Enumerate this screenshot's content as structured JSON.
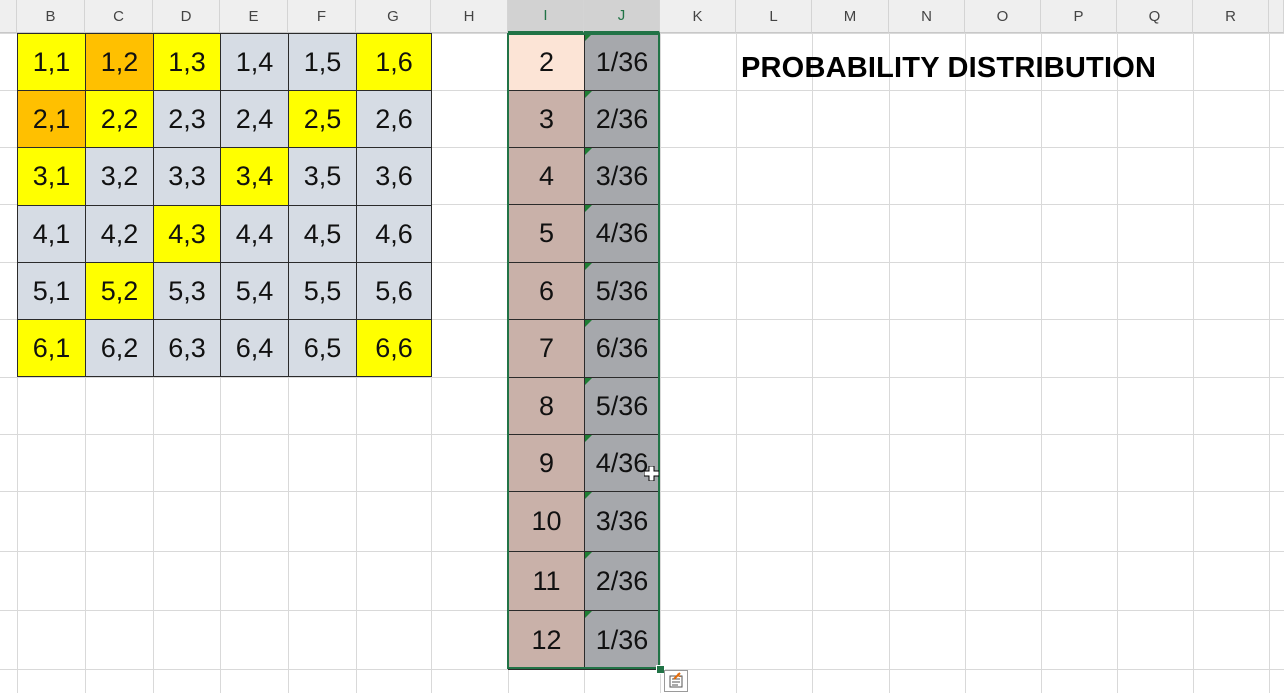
{
  "columns": [
    "B",
    "C",
    "D",
    "E",
    "F",
    "G",
    "H",
    "I",
    "J",
    "K",
    "L",
    "M",
    "N",
    "O",
    "P",
    "Q",
    "R"
  ],
  "selected_columns": [
    "I",
    "J"
  ],
  "title": "PROBABILITY DISTRIBUTION",
  "dice_grid": [
    [
      "1,1",
      "1,2",
      "1,3",
      "1,4",
      "1,5",
      "1,6"
    ],
    [
      "2,1",
      "2,2",
      "2,3",
      "2,4",
      "2,5",
      "2,6"
    ],
    [
      "3,1",
      "3,2",
      "3,3",
      "3,4",
      "3,5",
      "3,6"
    ],
    [
      "4,1",
      "4,2",
      "4,3",
      "4,4",
      "4,5",
      "4,6"
    ],
    [
      "5,1",
      "5,2",
      "5,3",
      "5,4",
      "5,5",
      "5,6"
    ],
    [
      "6,1",
      "6,2",
      "6,3",
      "6,4",
      "6,5",
      "6,6"
    ]
  ],
  "dice_grid_fills": [
    [
      "yellow",
      "orange",
      "yellow",
      "gray",
      "gray",
      "yellow"
    ],
    [
      "orange",
      "yellow",
      "gray",
      "gray",
      "yellow",
      "gray"
    ],
    [
      "yellow",
      "gray",
      "gray",
      "yellow",
      "gray",
      "gray"
    ],
    [
      "gray",
      "gray",
      "yellow",
      "gray",
      "gray",
      "gray"
    ],
    [
      "gray",
      "yellow",
      "gray",
      "gray",
      "gray",
      "gray"
    ],
    [
      "yellow",
      "gray",
      "gray",
      "gray",
      "gray",
      "yellow"
    ]
  ],
  "colors": {
    "yellow": "#ffff00",
    "orange": "#ffc000",
    "gray": "#d6dce4",
    "sum_first": "#fce4d6",
    "sum": "#c9b1a9",
    "prob": "#a6a8ac",
    "accent": "#217346"
  },
  "distribution": [
    {
      "sum": "2",
      "prob": "1/36"
    },
    {
      "sum": "3",
      "prob": "2/36"
    },
    {
      "sum": "4",
      "prob": "3/36"
    },
    {
      "sum": "5",
      "prob": "4/36"
    },
    {
      "sum": "6",
      "prob": "5/36"
    },
    {
      "sum": "7",
      "prob": "6/36"
    },
    {
      "sum": "8",
      "prob": "5/36"
    },
    {
      "sum": "9",
      "prob": "4/36"
    },
    {
      "sum": "10",
      "prob": "3/36"
    },
    {
      "sum": "11",
      "prob": "2/36"
    },
    {
      "sum": "12",
      "prob": "1/36"
    }
  ]
}
